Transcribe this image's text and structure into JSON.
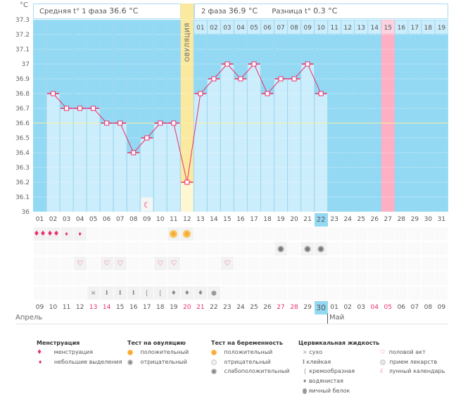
{
  "header": {
    "unit": "°С",
    "phase1_label": "Средняя t° 1 фаза",
    "phase1_value": "36.6 °С",
    "phase2_label": "2 фаза",
    "phase2_value": "36.9 °С",
    "diff_label": "Разница t°",
    "diff_value": "0.3 °С",
    "ovulation_label": "ОВУЛЯЦИЯ"
  },
  "colors": {
    "bg": "#94d9f3",
    "bar": "#ccedfb",
    "line": "#e8306c",
    "ovulation": "#fbe9a0",
    "expected": "#fdb0c4",
    "average": "#f6f29a",
    "today": "#94d9f3"
  },
  "chart_data": {
    "type": "line",
    "title": "",
    "ylabel": "°С",
    "ylim": [
      36,
      37.3
    ],
    "yticks": [
      "37.3",
      "37.2",
      "37.1",
      "37",
      "36.9",
      "36.8",
      "36.7",
      "36.6",
      "36.5",
      "36.4",
      "36.3",
      "36.2",
      "36.1",
      "36"
    ],
    "average_line": 36.6,
    "cycle_days": [
      "01",
      "02",
      "03",
      "04",
      "05",
      "06",
      "07",
      "08",
      "09",
      "10",
      "11",
      "12",
      "13",
      "14",
      "15",
      "16",
      "17",
      "18",
      "19",
      "20",
      "21",
      "22",
      "23",
      "24",
      "25",
      "26",
      "27",
      "28",
      "29",
      "30",
      "31"
    ],
    "temperatures": [
      null,
      36.8,
      36.7,
      36.7,
      36.7,
      36.6,
      36.6,
      36.4,
      36.5,
      36.6,
      36.6,
      36.2,
      36.8,
      36.9,
      37.0,
      36.9,
      37.0,
      36.8,
      36.9,
      36.9,
      37.0,
      36.8,
      null,
      null,
      null,
      null,
      null,
      null,
      null,
      null,
      null
    ],
    "ovulation_day": 12,
    "expected_day": 27,
    "today_day": 22,
    "phase2_days": [
      "01",
      "02",
      "03",
      "04",
      "05",
      "06",
      "07",
      "08",
      "09",
      "10",
      "11",
      "12",
      "13",
      "14",
      "15",
      "16",
      "17",
      "18",
      "19"
    ],
    "phase2_highlight_index": 14
  },
  "rows": {
    "menstruation": {
      "01": "heavy",
      "02": "heavy",
      "03": "light",
      "04": "light"
    },
    "ovulation_test": {
      "11": "positive",
      "12": "positive"
    },
    "pregnancy_test": {
      "19": "weak",
      "21": "weak",
      "22": "weak"
    },
    "intercourse": [
      "04",
      "06",
      "07",
      "10",
      "11",
      "15"
    ],
    "cervical": {
      "05": "dry",
      "06": "sticky",
      "07": "sticky",
      "08": "sticky",
      "09": "creamy",
      "10": "creamy",
      "11": "watery",
      "12": "watery",
      "13": "watery",
      "14": "eggwhite"
    },
    "moon_day": "09"
  },
  "calendar": {
    "dates": [
      "09",
      "10",
      "11",
      "12",
      "13",
      "14",
      "15",
      "16",
      "17",
      "18",
      "19",
      "20",
      "21",
      "22",
      "23",
      "24",
      "25",
      "26",
      "27",
      "28",
      "29",
      "30",
      "01",
      "02",
      "03",
      "04",
      "05",
      "06",
      "07",
      "08",
      "09"
    ],
    "red_indices": [
      4,
      5,
      11,
      12,
      18,
      19,
      25,
      26
    ],
    "today_index": 21,
    "month1": "Апрель",
    "month2": "Май"
  },
  "legend": {
    "menstruation": {
      "title": "Менструация",
      "items": [
        "менструация",
        "небольшие выделения"
      ]
    },
    "ovulation_test": {
      "title": "Тест на овуляцию",
      "items": [
        "положительный",
        "отрицательный"
      ]
    },
    "pregnancy_test": {
      "title": "Тест на беременность",
      "items": [
        "положительный",
        "отрицательный",
        "слабоположительный"
      ]
    },
    "cervical": {
      "title": "Цервикальная жидкость",
      "items": [
        "сухо",
        "клейкая",
        "кремообразная",
        "водянистая",
        "яичный белок"
      ]
    },
    "other": {
      "items": [
        "половой акт",
        "прием лекарств",
        "лунный календарь"
      ]
    }
  }
}
